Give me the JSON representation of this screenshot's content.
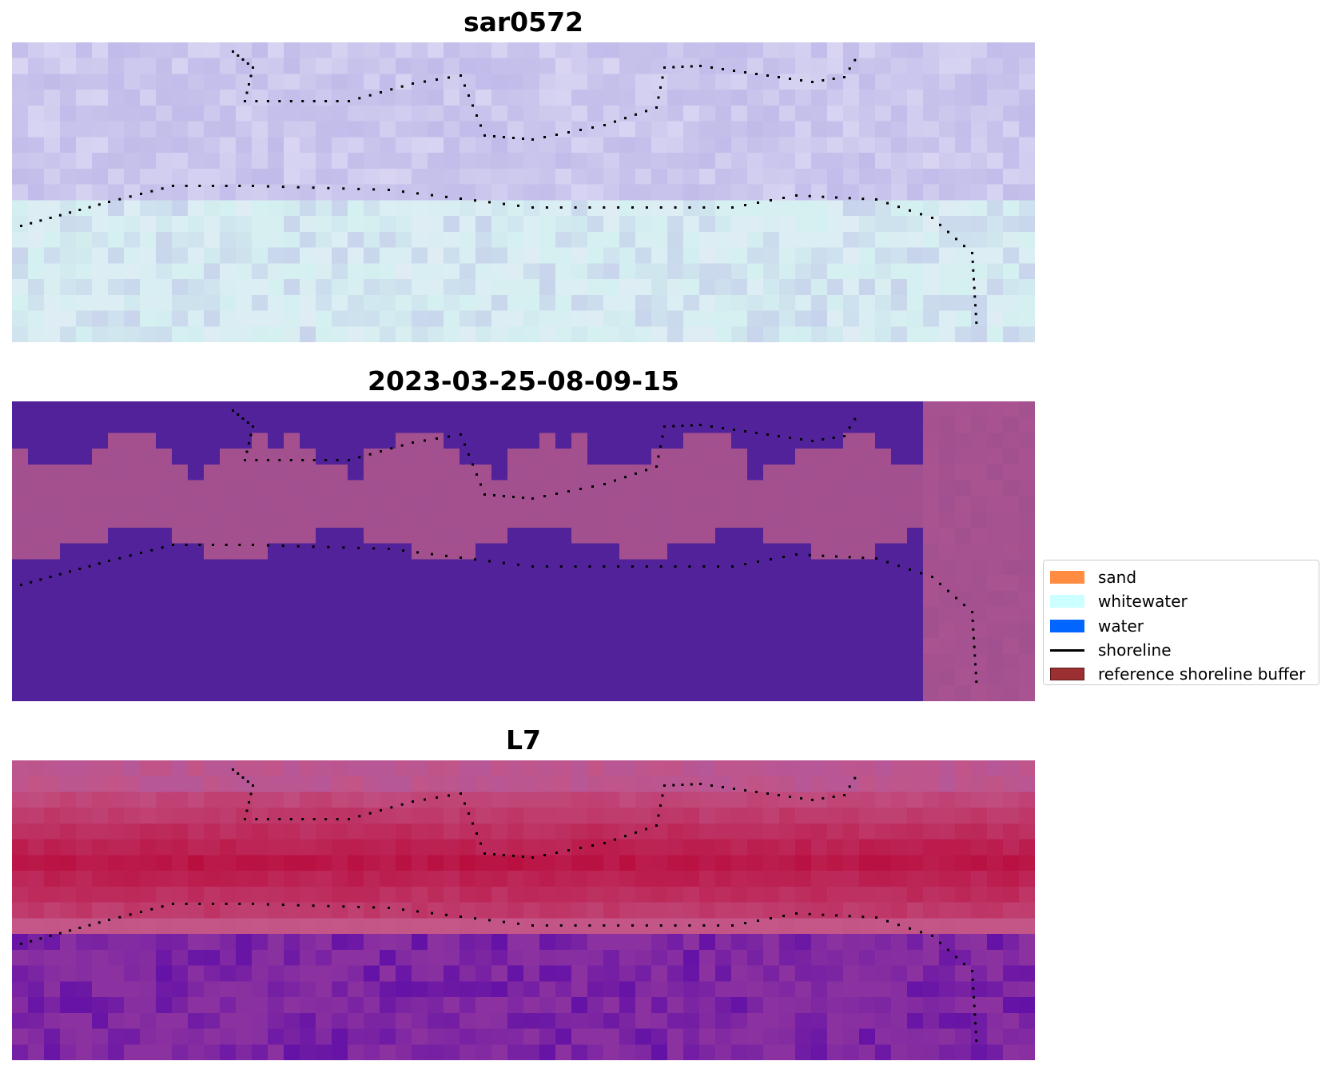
{
  "panels": [
    {
      "title": "sar0572",
      "style": "rgb"
    },
    {
      "title": "2023-03-25-08-09-15",
      "style": "classification"
    },
    {
      "title": "L7",
      "style": "index"
    }
  ],
  "legend": {
    "items": [
      {
        "label": "sand",
        "kind": "patch",
        "color": "#ff8c40"
      },
      {
        "label": "whitewater",
        "kind": "patch",
        "color": "#ccffff"
      },
      {
        "label": "water",
        "kind": "patch",
        "color": "#0066ff"
      },
      {
        "label": "shoreline",
        "kind": "line",
        "color": "#000000"
      },
      {
        "label": "reference shoreline buffer",
        "kind": "patch",
        "color": "#9b2f31",
        "edge": "#5c1a1a"
      }
    ]
  },
  "colors": {
    "class_water": "#52229a",
    "class_land": "#a2508f",
    "index_high": "#b90f3f",
    "index_mid": "#c25486",
    "index_low": "#5a0aa8",
    "rgb_land": "#c8c4ec",
    "rgb_sea": "#d4f0f0",
    "shoreline_dots": "#000000"
  }
}
